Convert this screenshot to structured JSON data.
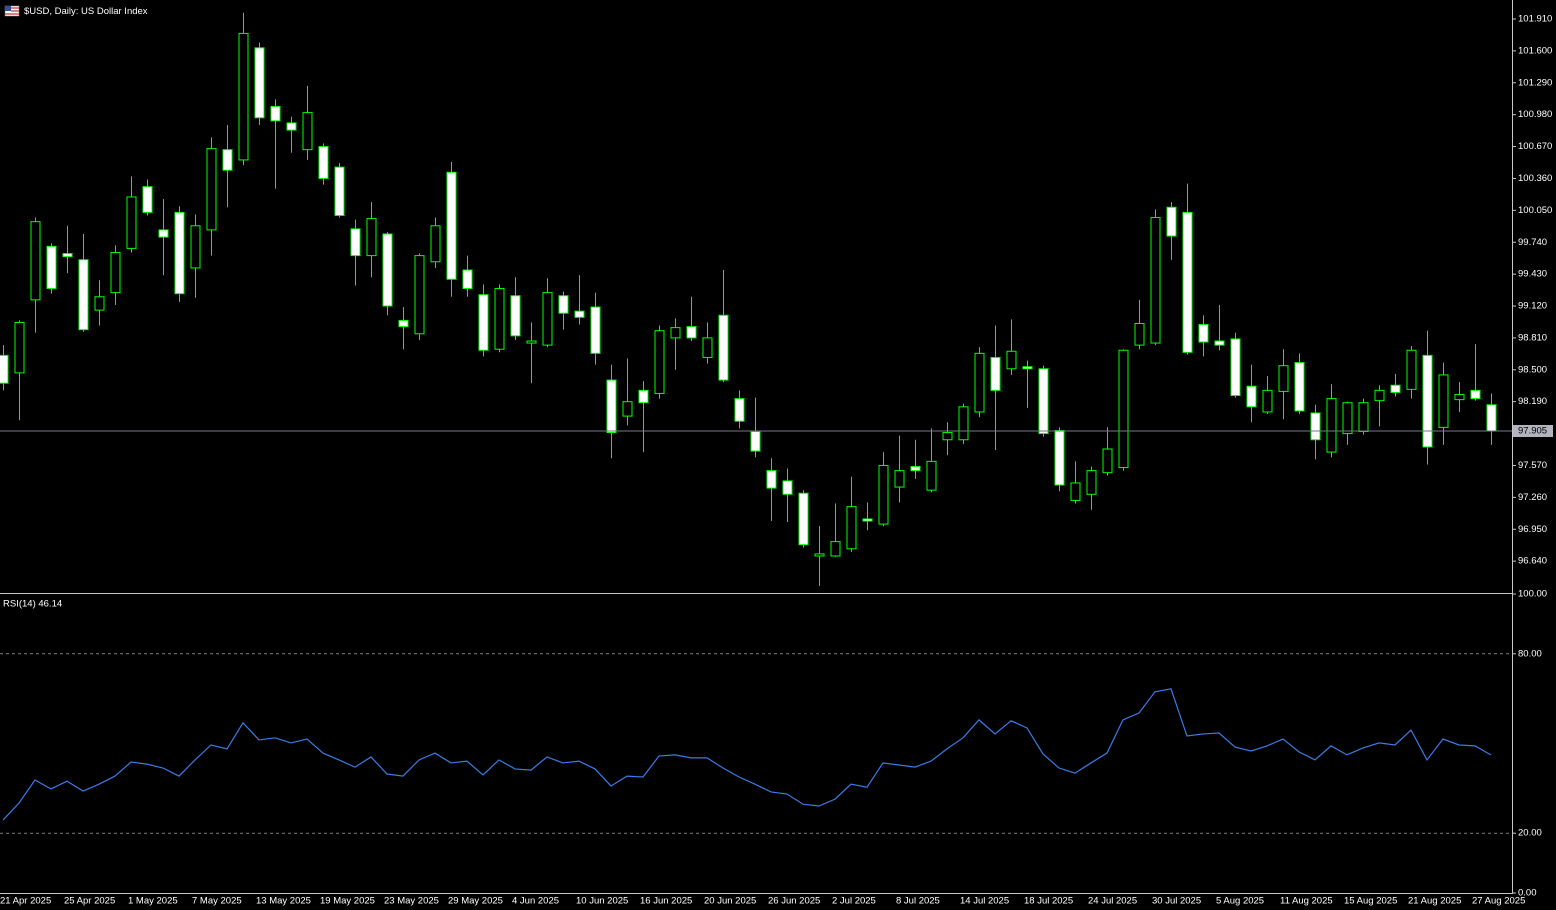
{
  "chart_data": [
    {
      "type": "candlestick",
      "title": "$USD, Daily:  US Dollar Index",
      "categories": [
        "21 Apr 2025",
        null,
        null,
        null,
        "25 Apr 2025",
        null,
        null,
        null,
        "1 May 2025",
        null,
        null,
        null,
        "7 May 2025",
        null,
        null,
        null,
        "13 May 2025",
        null,
        null,
        null,
        "19 May 2025",
        null,
        null,
        null,
        "23 May 2025",
        null,
        null,
        null,
        "29 May 2025",
        null,
        null,
        null,
        "4 Jun 2025",
        null,
        null,
        null,
        "10 Jun 2025",
        null,
        null,
        null,
        "16 Jun 2025",
        null,
        null,
        null,
        "20 Jun 2025",
        null,
        null,
        null,
        "26 Jun 2025",
        null,
        null,
        null,
        "2 Jul 2025",
        null,
        null,
        null,
        "8 Jul 2025",
        null,
        null,
        null,
        "14 Jul 2025",
        null,
        null,
        null,
        "18 Jul 2025",
        null,
        null,
        null,
        "24 Jul 2025",
        null,
        null,
        null,
        "30 Jul 2025",
        null,
        null,
        null,
        "5 Aug 2025",
        null,
        null,
        null,
        "11 Aug 2025",
        null,
        null,
        null,
        "15 Aug 2025",
        null,
        null,
        null,
        "21 Aug 2025",
        null,
        null,
        null,
        "27 Aug 2025",
        null
      ],
      "open": [
        98.64,
        98.47,
        99.18,
        99.7,
        99.63,
        99.57,
        99.08,
        99.25,
        99.68,
        100.28,
        99.86,
        100.03,
        99.49,
        99.86,
        100.64,
        100.54,
        101.63,
        101.06,
        100.9,
        100.64,
        100.67,
        100.47,
        99.87,
        99.61,
        99.82,
        98.98,
        98.85,
        99.55,
        100.42,
        99.47,
        99.23,
        98.7,
        99.22,
        98.76,
        98.74,
        99.22,
        99.07,
        99.11,
        98.4,
        98.05,
        98.3,
        98.27,
        98.81,
        98.92,
        98.62,
        99.03,
        98.22,
        97.9,
        97.52,
        97.42,
        97.3,
        96.69,
        96.69,
        96.76,
        97.05,
        97.0,
        97.36,
        97.56,
        97.33,
        97.82,
        97.82,
        98.09,
        98.62,
        98.51,
        98.53,
        98.51,
        97.91,
        97.23,
        97.29,
        97.5,
        97.55,
        98.74,
        98.76,
        100.08,
        100.03,
        98.94,
        98.78,
        98.8,
        98.34,
        98.09,
        98.29,
        98.57,
        98.08,
        97.7,
        97.88,
        97.9,
        98.2,
        98.35,
        98.31,
        98.64,
        97.94,
        98.21,
        98.3,
        98.16
      ],
      "high": [
        98.74,
        98.98,
        99.98,
        99.73,
        99.9,
        99.82,
        99.37,
        99.71,
        100.38,
        100.35,
        100.16,
        100.09,
        100.01,
        100.76,
        100.88,
        101.97,
        101.68,
        101.13,
        100.96,
        101.26,
        100.7,
        100.51,
        99.96,
        100.13,
        99.84,
        99.11,
        99.63,
        99.98,
        100.52,
        99.61,
        99.33,
        99.33,
        99.4,
        98.96,
        99.39,
        99.26,
        99.42,
        99.25,
        98.55,
        98.61,
        98.39,
        98.93,
        99.0,
        99.21,
        98.96,
        99.47,
        98.3,
        98.23,
        97.64,
        97.54,
        97.33,
        96.98,
        97.2,
        97.46,
        97.21,
        97.7,
        97.86,
        97.82,
        97.93,
        97.99,
        98.17,
        98.72,
        98.93,
        98.99,
        98.59,
        98.54,
        97.94,
        97.61,
        97.56,
        97.94,
        98.7,
        99.18,
        100.06,
        100.13,
        100.31,
        99.03,
        99.13,
        98.86,
        98.55,
        98.44,
        98.7,
        98.66,
        98.16,
        98.36,
        98.19,
        98.22,
        98.35,
        98.46,
        98.73,
        98.88,
        98.57,
        98.38,
        98.75,
        98.27
      ],
      "low": [
        98.3,
        98.01,
        98.86,
        99.24,
        99.44,
        98.87,
        98.93,
        99.13,
        99.64,
        100.0,
        99.42,
        99.16,
        99.2,
        99.61,
        100.08,
        100.49,
        100.88,
        100.26,
        100.61,
        100.54,
        100.3,
        99.98,
        99.32,
        99.4,
        99.03,
        98.7,
        98.79,
        99.49,
        99.21,
        99.21,
        98.63,
        98.67,
        98.79,
        98.37,
        98.72,
        98.89,
        98.94,
        98.55,
        97.64,
        97.96,
        97.7,
        98.22,
        98.5,
        98.78,
        98.56,
        98.38,
        97.93,
        97.65,
        97.03,
        97.02,
        96.77,
        96.4,
        96.68,
        96.73,
        96.94,
        96.98,
        97.21,
        97.44,
        97.31,
        97.67,
        97.78,
        98.04,
        97.72,
        98.45,
        98.13,
        97.85,
        97.32,
        97.2,
        97.14,
        97.47,
        97.52,
        98.7,
        98.74,
        99.57,
        98.65,
        98.63,
        98.69,
        98.23,
        97.99,
        98.07,
        98.02,
        98.07,
        97.63,
        97.65,
        97.77,
        97.87,
        97.95,
        98.24,
        98.22,
        97.58,
        97.77,
        98.09,
        98.2,
        97.77
      ],
      "close": [
        98.37,
        98.96,
        99.94,
        99.29,
        99.6,
        98.89,
        99.21,
        99.64,
        100.18,
        100.03,
        99.79,
        99.24,
        99.9,
        100.65,
        100.44,
        101.77,
        100.95,
        100.92,
        100.83,
        101.0,
        100.36,
        100.0,
        99.61,
        99.97,
        99.12,
        98.92,
        99.61,
        99.9,
        99.38,
        99.29,
        98.69,
        99.29,
        98.83,
        98.78,
        99.25,
        99.05,
        99.01,
        98.66,
        97.89,
        98.19,
        98.18,
        98.88,
        98.91,
        98.81,
        98.81,
        98.4,
        98.0,
        97.71,
        97.35,
        97.29,
        96.8,
        96.71,
        96.83,
        97.17,
        97.03,
        97.57,
        97.52,
        97.52,
        97.61,
        97.89,
        98.14,
        98.66,
        98.3,
        98.68,
        98.51,
        97.88,
        97.38,
        97.4,
        97.52,
        97.73,
        98.69,
        98.95,
        99.98,
        99.8,
        98.67,
        98.77,
        98.74,
        98.25,
        98.14,
        98.3,
        98.54,
        98.1,
        97.82,
        98.22,
        98.18,
        98.18,
        98.3,
        98.28,
        98.69,
        97.75,
        98.45,
        98.26,
        98.22,
        97.905
      ],
      "ylim": [
        96.34,
        102.085
      ],
      "yticks": [
        {
          "value": 96.64,
          "label": "96.640"
        },
        {
          "value": 96.95,
          "label": "96.950"
        },
        {
          "value": 97.26,
          "label": "97.260"
        },
        {
          "value": 97.57,
          "label": "97.570"
        },
        {
          "value": 98.19,
          "label": "98.190"
        },
        {
          "value": 98.5,
          "label": "98.500"
        },
        {
          "value": 98.81,
          "label": "98.810"
        },
        {
          "value": 99.12,
          "label": "99.120"
        },
        {
          "value": 99.43,
          "label": "99.430"
        },
        {
          "value": 99.74,
          "label": "99.740"
        },
        {
          "value": 100.05,
          "label": "100.050"
        },
        {
          "value": 100.36,
          "label": "100.360"
        },
        {
          "value": 100.67,
          "label": "100.670"
        },
        {
          "value": 100.98,
          "label": "100.980"
        },
        {
          "value": 101.29,
          "label": "101.290"
        },
        {
          "value": 101.6,
          "label": "101.600"
        },
        {
          "value": 101.91,
          "label": "101.910"
        }
      ],
      "last_price": 97.905,
      "colors": {
        "up": "#000000",
        "down": "#ffffff",
        "outline": "#00ff00",
        "last_price_line": "#77778c"
      },
      "grid": false
    },
    {
      "type": "line",
      "title": "RSI(14) 46.14",
      "values": [
        24.4,
        30.1,
        37.8,
        34.8,
        37.4,
        34.1,
        36.4,
        39.1,
        43.8,
        43.1,
        41.8,
        39.1,
        44.5,
        49.5,
        48.2,
        56.9,
        51.2,
        51.9,
        50.2,
        51.5,
        46.8,
        44.5,
        42.1,
        45.5,
        39.8,
        39.1,
        44.5,
        46.8,
        43.5,
        44.1,
        39.5,
        44.5,
        41.5,
        41.1,
        45.5,
        43.5,
        44.1,
        41.5,
        35.8,
        39.1,
        38.8,
        45.8,
        46.2,
        45.2,
        45.2,
        41.8,
        38.8,
        36.4,
        33.8,
        33.1,
        29.7,
        29.1,
        31.4,
        36.4,
        35.4,
        43.5,
        42.8,
        42.1,
        44.1,
        48.2,
        51.9,
        57.9,
        53.2,
        57.6,
        55.2,
        46.5,
        41.8,
        40.1,
        43.5,
        46.8,
        57.9,
        60.2,
        67.3,
        68.3,
        52.5,
        53.2,
        53.5,
        48.8,
        47.5,
        49.2,
        51.5,
        47.2,
        44.5,
        49.2,
        46.2,
        48.5,
        50.2,
        49.5,
        54.5,
        44.5,
        51.5,
        49.5,
        49.2,
        46.14
      ],
      "color": "#3a7be6",
      "ylim": [
        0,
        100
      ],
      "yticks": [
        {
          "value": 0,
          "label": "0.00"
        },
        {
          "value": 20,
          "label": "20.00"
        },
        {
          "value": 80,
          "label": "80.00"
        },
        {
          "value": 100,
          "label": "100.00"
        }
      ],
      "level_style": "dashed"
    }
  ]
}
